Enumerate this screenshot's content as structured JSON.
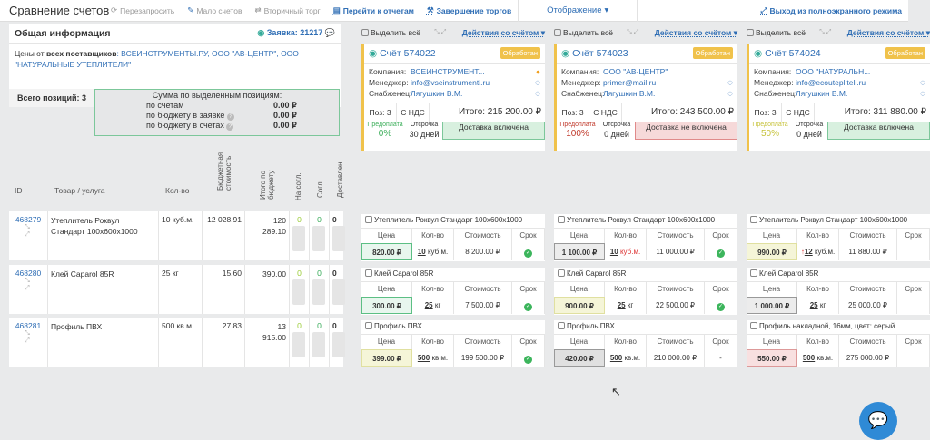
{
  "header": {
    "title": "Сравнение счетов",
    "buttons": [
      "Перезапросить",
      "Мало счетов",
      "Вторичный торг",
      "Перейти к отчетам",
      "Завершение торгов"
    ],
    "display": "Отображение",
    "exit_fullscreen": "Выход из полноэкранного режима"
  },
  "info": {
    "title": "Общая информация",
    "request": "Заявка: 21217",
    "prices_from": "Цены от ",
    "all_suppliers": "всех поставщиков",
    "suppliers": ": ВСЕИНСТРУМЕНТЫ.РУ, ООО \"АВ-ЦЕНТР\", ООО \"НАТУРАЛЬНЫЕ УТЕПЛИТЕЛИ\"",
    "total_label": "Всего позиций: ",
    "total": "3",
    "sum_title": "Сумма по выделенным позициям:",
    "sum_rows": [
      {
        "label": "по счетам",
        "value": "0.00 ₽"
      },
      {
        "label": "по бюджету в заявке",
        "value": "0.00 ₽"
      },
      {
        "label": "по бюджету в счетах",
        "value": "0.00 ₽"
      }
    ]
  },
  "columns": [
    "ID",
    "Товар / услуга",
    "Кол-во",
    "Бюджетная стоимость",
    "Итого по бюджету",
    "На согл.",
    "Согл.",
    "Доставлен"
  ],
  "rows": [
    {
      "id": "468279",
      "name": "Утеплитель Роквул Стандарт 100х600х1000",
      "qty": "10 куб.м.",
      "budget": "12 028.91",
      "total": "120 289.10",
      "a": "0",
      "b": "0",
      "c": "0"
    },
    {
      "id": "468280",
      "name": "Клей Caparol 85R",
      "qty": "25 кг",
      "budget": "15.60",
      "total": "390.00",
      "a": "0",
      "b": "0",
      "c": "0"
    },
    {
      "id": "468281",
      "name": "Профиль ПВХ",
      "qty": "500 кв.м.",
      "budget": "27.83",
      "total": "13 915.00",
      "a": "0",
      "b": "0",
      "c": "0"
    }
  ],
  "labels": {
    "select_all": "Выделить всё",
    "actions": "Действия со счётом",
    "company": "Компания:",
    "manager": "Менеджер:",
    "buyer": "Снабженец:",
    "pos": "Поз: 3",
    "vat": "С НДС",
    "prepay": "Предоплата",
    "delay": "Отсрочка",
    "price": "Цена",
    "qty": "Кол-во",
    "cost": "Стоимость",
    "term": "Срок"
  },
  "invoices": [
    {
      "title": "Счёт 574022",
      "status": "Обработан",
      "company": "ВСЕИНСТРУМЕНТ...",
      "manager": "info@vseinstrumenti.ru",
      "buyer": "Лягушкин В.М.",
      "total": "Итого: 215 200.00 ₽",
      "prepay": "0%",
      "delay": "30 дней",
      "delivery": "Доставка включена",
      "del_ok": true,
      "prepay_color": "#3cae5a",
      "items": [
        {
          "name": "Утеплитель Роквул Стандарт 100х600х1000",
          "price": "820.00 ₽",
          "qn": "10",
          "qu": "куб.м.",
          "cost": "8 200.00 ₽",
          "term": "✓",
          "pc": "#e8f6ee",
          "pb": "#5cbf84"
        },
        {
          "name": "Клей Caparol 85R",
          "price": "300.00 ₽",
          "qn": "25",
          "qu": "кг",
          "cost": "7 500.00 ₽",
          "term": "✓",
          "pc": "#e8f6ee",
          "pb": "#5cbf84"
        },
        {
          "name": "Профиль ПВХ",
          "price": "399.00 ₽",
          "qn": "500",
          "qu": "кв.м.",
          "cost": "199 500.00 ₽",
          "term": "✓",
          "pc": "#f5f5d8",
          "pb": "#e0e0a0"
        }
      ]
    },
    {
      "title": "Счёт 574023",
      "status": "Обработан",
      "company": "ООО \"АВ-ЦЕНТР\"",
      "manager": "primer@mail.ru",
      "buyer": "Лягушкин В.М.",
      "total": "Итого: 243 500.00 ₽",
      "prepay": "100%",
      "delay": "0 дней",
      "delivery": "Доставка не включена",
      "del_ok": false,
      "prepay_color": "#c0392b",
      "items": [
        {
          "name": "Утеплитель Роквул Стандарт 100х600х1000",
          "price": "1 100.00 ₽",
          "qn": "10",
          "qu": "куб.м.",
          "cost": "11 000.00 ₽",
          "term": "✓",
          "pc": "#ececec",
          "pb": "#999"
        },
        {
          "name": "Клей Caparol 85R",
          "price": "900.00 ₽",
          "qn": "25",
          "qu": "кг",
          "cost": "22 500.00 ₽",
          "term": "✓",
          "pc": "#f5f5d8",
          "pb": "#e0e0a0"
        },
        {
          "name": "Профиль ПВХ",
          "price": "420.00 ₽",
          "qn": "500",
          "qu": "кв.м.",
          "cost": "210 000.00 ₽",
          "term": "-",
          "pc": "#e0e0e0",
          "pb": "#999"
        }
      ]
    },
    {
      "title": "Счёт 574024",
      "status": "Обработан",
      "company": "ООО \"НАТУРАЛЬН...",
      "manager": "info@ecouteplitelі.ru",
      "buyer": "Лягушкин В.М.",
      "total": "Итого: 311 880.00 ₽",
      "prepay": "50%",
      "delay": "0 дней",
      "delivery": "Доставка включена",
      "del_ok": true,
      "prepay_color": "#c6c23a",
      "items": [
        {
          "name": "Утеплитель Роквул Стандарт 100х600х1000",
          "price": "990.00 ₽",
          "qn": "12",
          "qu": "куб.м.",
          "cost": "11 880.00 ₽",
          "term": "",
          "pc": "#f5f5d8",
          "pb": "#e0e0a0"
        },
        {
          "name": "Клей Caparol 85R",
          "price": "1 000.00 ₽",
          "qn": "25",
          "qu": "кг",
          "cost": "25 000.00 ₽",
          "term": "",
          "pc": "#ececec",
          "pb": "#999"
        },
        {
          "name": "Профиль накладной, 16мм, цвет: серый",
          "price": "550.00 ₽",
          "qn": "500",
          "qu": "кв.м.",
          "cost": "275 000.00 ₽",
          "term": "",
          "pc": "#f8e0e0",
          "pb": "#d99"
        }
      ]
    }
  ]
}
